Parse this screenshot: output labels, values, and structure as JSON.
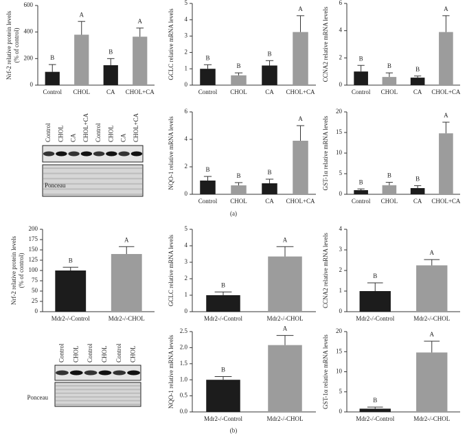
{
  "chart_data": [
    {
      "type": "bar",
      "ylabel": [
        "Nrf-2 relative protein levels",
        "(% of control)"
      ],
      "categories": [
        "Control",
        "CHOL",
        "CA",
        "CHOL+CA"
      ],
      "values": [
        100,
        380,
        150,
        365
      ],
      "errors": [
        55,
        100,
        50,
        65
      ],
      "letters": [
        "B",
        "A",
        "B",
        "A"
      ],
      "colors": [
        "#1c1c1c",
        "#9c9c9c",
        "#1c1c1c",
        "#9c9c9c"
      ],
      "ylim": [
        0,
        600
      ],
      "yticks": [
        0,
        200,
        400,
        600
      ]
    },
    {
      "type": "bar",
      "ylabel": [
        "GCLC relative mRNA levels"
      ],
      "categories": [
        "Control",
        "CHOL",
        "CA",
        "CHOL+CA"
      ],
      "values": [
        1.0,
        0.6,
        1.2,
        3.25
      ],
      "errors": [
        0.25,
        0.15,
        0.3,
        1.0
      ],
      "letters": [
        "B",
        "B",
        "B",
        "A"
      ],
      "colors": [
        "#1c1c1c",
        "#9c9c9c",
        "#1c1c1c",
        "#9c9c9c"
      ],
      "ylim": [
        0,
        5
      ],
      "yticks": [
        0,
        1,
        2,
        3,
        4,
        5
      ]
    },
    {
      "type": "bar",
      "ylabel": [
        "CCNA2 relative mRNA levels"
      ],
      "categories": [
        "Control",
        "CHOL",
        "CA",
        "CHOL+CA"
      ],
      "values": [
        1.0,
        0.6,
        0.55,
        3.9
      ],
      "errors": [
        0.45,
        0.3,
        0.12,
        1.2
      ],
      "letters": [
        "B",
        "B",
        "B",
        "A"
      ],
      "colors": [
        "#1c1c1c",
        "#9c9c9c",
        "#1c1c1c",
        "#9c9c9c"
      ],
      "ylim": [
        0,
        6
      ],
      "yticks": [
        0,
        2,
        4,
        6
      ]
    },
    {
      "type": "bar",
      "ylabel": [
        "NQO-1 relative mRNA levels"
      ],
      "categories": [
        "Control",
        "CHOL",
        "CA",
        "CHOL+CA"
      ],
      "values": [
        1.0,
        0.65,
        0.8,
        3.9
      ],
      "errors": [
        0.3,
        0.2,
        0.3,
        1.1
      ],
      "letters": [
        "B",
        "B",
        "B",
        "A"
      ],
      "colors": [
        "#1c1c1c",
        "#9c9c9c",
        "#1c1c1c",
        "#9c9c9c"
      ],
      "ylim": [
        0,
        6
      ],
      "yticks": [
        0,
        2,
        4,
        6
      ]
    },
    {
      "type": "bar",
      "ylabel": [
        "GST-1α relative mRNA levels"
      ],
      "categories": [
        "Control",
        "CHOL",
        "CA",
        "CHOL+CA"
      ],
      "values": [
        1.0,
        2.2,
        1.5,
        14.8
      ],
      "errors": [
        0.3,
        0.7,
        0.6,
        2.7
      ],
      "letters": [
        "B",
        "B",
        "B",
        "A"
      ],
      "colors": [
        "#1c1c1c",
        "#9c9c9c",
        "#1c1c1c",
        "#9c9c9c"
      ],
      "ylim": [
        0,
        20
      ],
      "yticks": [
        0,
        5,
        10,
        15,
        20
      ]
    },
    {
      "type": "bar",
      "ylabel": [
        "Nrf-2 relative protein levels",
        "(% of control)"
      ],
      "categories": [
        "Mdr2-/-Control",
        "Mdr2-/-CHOL"
      ],
      "values": [
        100,
        140
      ],
      "errors": [
        8,
        18
      ],
      "letters": [
        "B",
        "A"
      ],
      "colors": [
        "#1c1c1c",
        "#9c9c9c"
      ],
      "ylim": [
        0,
        200
      ],
      "yticks": [
        0,
        25,
        50,
        75,
        100,
        125,
        150,
        175,
        200
      ]
    },
    {
      "type": "bar",
      "ylabel": [
        "GCLC relative mRNA levels"
      ],
      "categories": [
        "Mdr2-/-Control",
        "Mdr2-/-CHOL"
      ],
      "values": [
        1.0,
        3.35
      ],
      "errors": [
        0.2,
        0.6
      ],
      "letters": [
        "B",
        "A"
      ],
      "colors": [
        "#1c1c1c",
        "#9c9c9c"
      ],
      "ylim": [
        0,
        5
      ],
      "yticks": [
        0,
        1,
        2,
        3,
        4,
        5
      ]
    },
    {
      "type": "bar",
      "ylabel": [
        "CCNA2 relative mRNA levels"
      ],
      "categories": [
        "Mdr2-/-Control",
        "Mdr2-/-CHOL"
      ],
      "values": [
        1.0,
        2.25
      ],
      "errors": [
        0.4,
        0.28
      ],
      "letters": [
        "B",
        "A"
      ],
      "colors": [
        "#1c1c1c",
        "#9c9c9c"
      ],
      "ylim": [
        0,
        4
      ],
      "yticks": [
        0,
        1,
        2,
        3,
        4
      ]
    },
    {
      "type": "bar",
      "ylabel": [
        "NQO-1 relative mRNA levels"
      ],
      "categories": [
        "Mdr2-/-Control",
        "Mdr2-/-CHOL"
      ],
      "values": [
        1.0,
        2.08
      ],
      "errors": [
        0.1,
        0.3
      ],
      "letters": [
        "B",
        "A"
      ],
      "colors": [
        "#1c1c1c",
        "#9c9c9c"
      ],
      "ylim": [
        0,
        2.5
      ],
      "yticks": [
        {
          "value": 0,
          "label": "0.0"
        },
        {
          "value": 0.5,
          "label": "0.5"
        },
        {
          "value": 1,
          "label": "1.0"
        },
        {
          "value": 1.5,
          "label": "1.5"
        },
        {
          "value": 2,
          "label": "2.0"
        },
        {
          "value": 2.5,
          "label": "2.5"
        }
      ]
    },
    {
      "type": "bar",
      "ylabel": [
        "GST-1α relative mRNA levels"
      ],
      "categories": [
        "Mdr2-/-Control",
        "Mdr2-/-CHOL"
      ],
      "values": [
        0.8,
        14.8
      ],
      "errors": [
        0.4,
        2.8
      ],
      "letters": [
        "B",
        "A"
      ],
      "colors": [
        "#1c1c1c",
        "#9c9c9c"
      ],
      "ylim": [
        0,
        20
      ],
      "yticks": [
        0,
        5,
        10,
        15,
        20
      ]
    }
  ],
  "blots": [
    {
      "lanes": [
        "Control",
        "CHOL",
        "CA",
        "CHOL+CA",
        "Control",
        "CHOL",
        "CA",
        "CHOL+CA"
      ],
      "label": "Ponceau"
    },
    {
      "lanes": [
        "Control",
        "CHOL",
        "Control",
        "CHOL",
        "Control",
        "CHOL"
      ],
      "label": "Ponceau"
    }
  ],
  "panel_labels": [
    "(a)",
    "(b)"
  ]
}
